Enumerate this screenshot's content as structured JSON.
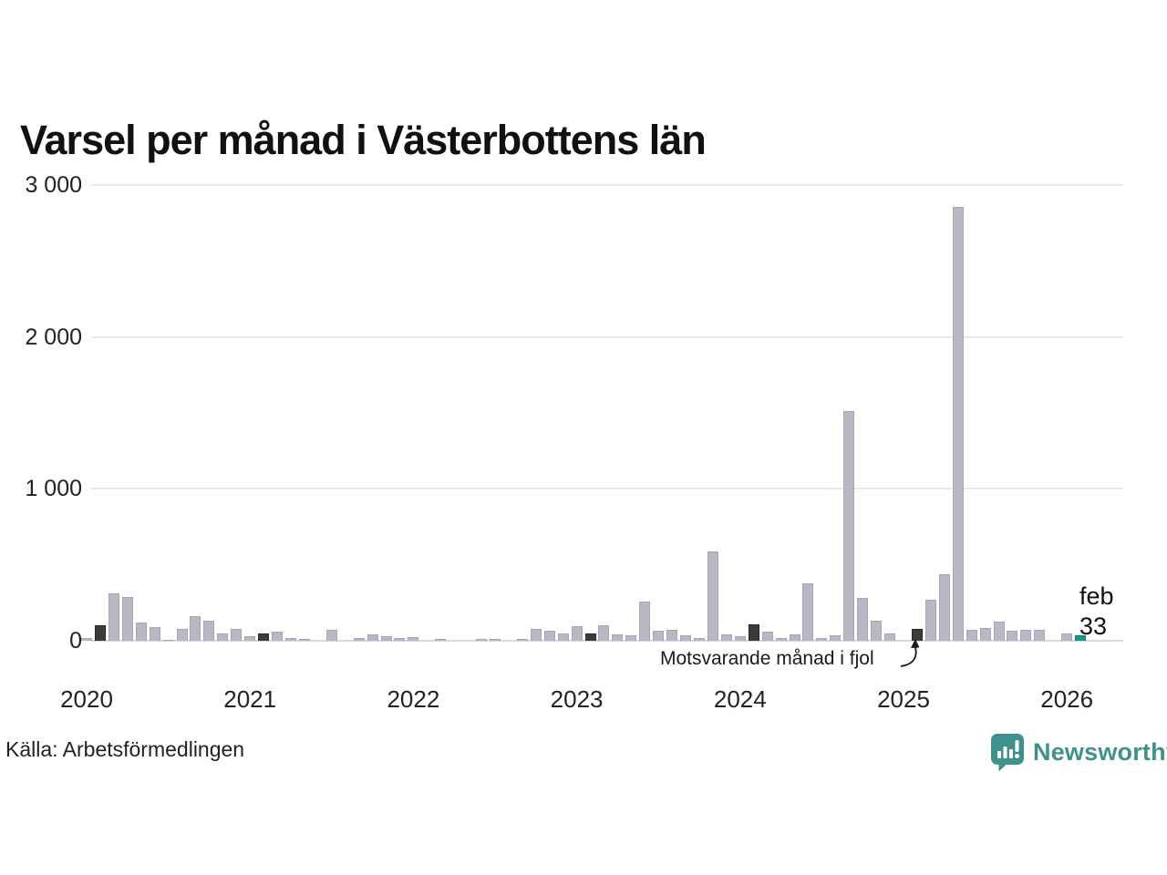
{
  "title": "Varsel per månad i Västerbottens län",
  "source": "Källa: Arbetsförmedlingen",
  "brand": {
    "name": "Newsworthy",
    "color": "#3f928c"
  },
  "annotation": {
    "text": "Motsvarande månad i fjol"
  },
  "last_point_label": {
    "month": "feb",
    "value": "33"
  },
  "colors": {
    "bar": "#bab7c4",
    "bar_last_year": "#3b3b3b",
    "bar_current": "#16988a",
    "grid": "#e9e9ee",
    "axis_line": "#d8d8de",
    "text": "#111111"
  },
  "chart_data": {
    "type": "bar",
    "title": "Varsel per månad i Västerbottens län",
    "xlabel": "",
    "ylabel": "",
    "ylim": [
      0,
      3000
    ],
    "grid": "horizontal",
    "y_ticks": [
      {
        "value": 0,
        "label": "0"
      },
      {
        "value": 1000,
        "label": "1 000"
      },
      {
        "value": 2000,
        "label": "2 000"
      },
      {
        "value": 3000,
        "label": "3 000"
      }
    ],
    "x_ticks": [
      {
        "label": "2020",
        "month": "2020-01"
      },
      {
        "label": "2021",
        "month": "2021-01"
      },
      {
        "label": "2022",
        "month": "2022-01"
      },
      {
        "label": "2023",
        "month": "2023-01"
      },
      {
        "label": "2024",
        "month": "2024-01"
      },
      {
        "label": "2025",
        "month": "2025-01"
      },
      {
        "label": "2026",
        "month": "2026-01"
      }
    ],
    "highlight_months": [
      "2020-02",
      "2021-02",
      "2023-02",
      "2024-02",
      "2025-02"
    ],
    "highlight_legend": "Motsvarande månad i fjol",
    "current_month": "2026-02",
    "current_value": 33,
    "points": [
      [
        "2020-01",
        15
      ],
      [
        "2020-02",
        100
      ],
      [
        "2020-03",
        310
      ],
      [
        "2020-04",
        290
      ],
      [
        "2020-05",
        120
      ],
      [
        "2020-06",
        90
      ],
      [
        "2020-07",
        5
      ],
      [
        "2020-08",
        80
      ],
      [
        "2020-09",
        160
      ],
      [
        "2020-10",
        130
      ],
      [
        "2020-11",
        45
      ],
      [
        "2020-12",
        80
      ],
      [
        "2021-01",
        30
      ],
      [
        "2021-02",
        45
      ],
      [
        "2021-03",
        60
      ],
      [
        "2021-04",
        20
      ],
      [
        "2021-05",
        10
      ],
      [
        "2021-06",
        0
      ],
      [
        "2021-07",
        70
      ],
      [
        "2021-08",
        0
      ],
      [
        "2021-09",
        16
      ],
      [
        "2021-10",
        40
      ],
      [
        "2021-11",
        32
      ],
      [
        "2021-12",
        20
      ],
      [
        "2022-01",
        22
      ],
      [
        "2022-02",
        0
      ],
      [
        "2022-03",
        12
      ],
      [
        "2022-04",
        0
      ],
      [
        "2022-05",
        0
      ],
      [
        "2022-06",
        12
      ],
      [
        "2022-07",
        12
      ],
      [
        "2022-08",
        0
      ],
      [
        "2022-09",
        10
      ],
      [
        "2022-10",
        80
      ],
      [
        "2022-11",
        68
      ],
      [
        "2022-12",
        48
      ],
      [
        "2023-01",
        98
      ],
      [
        "2023-02",
        50
      ],
      [
        "2023-03",
        100
      ],
      [
        "2023-04",
        44
      ],
      [
        "2023-05",
        36
      ],
      [
        "2023-06",
        260
      ],
      [
        "2023-07",
        64
      ],
      [
        "2023-08",
        70
      ],
      [
        "2023-09",
        34
      ],
      [
        "2023-10",
        20
      ],
      [
        "2023-11",
        590
      ],
      [
        "2023-12",
        44
      ],
      [
        "2024-01",
        30
      ],
      [
        "2024-02",
        110
      ],
      [
        "2024-03",
        62
      ],
      [
        "2024-04",
        16
      ],
      [
        "2024-05",
        44
      ],
      [
        "2024-06",
        375
      ],
      [
        "2024-07",
        20
      ],
      [
        "2024-08",
        36
      ],
      [
        "2024-09",
        1510
      ],
      [
        "2024-10",
        282
      ],
      [
        "2024-11",
        130
      ],
      [
        "2024-12",
        46
      ],
      [
        "2025-01",
        0
      ],
      [
        "2025-02",
        80
      ],
      [
        "2025-03",
        270
      ],
      [
        "2025-04",
        440
      ],
      [
        "2025-05",
        2855
      ],
      [
        "2025-06",
        70
      ],
      [
        "2025-07",
        86
      ],
      [
        "2025-08",
        126
      ],
      [
        "2025-09",
        66
      ],
      [
        "2025-10",
        70
      ],
      [
        "2025-11",
        70
      ],
      [
        "2025-12",
        0
      ],
      [
        "2026-01",
        48
      ],
      [
        "2026-02",
        33
      ]
    ]
  }
}
